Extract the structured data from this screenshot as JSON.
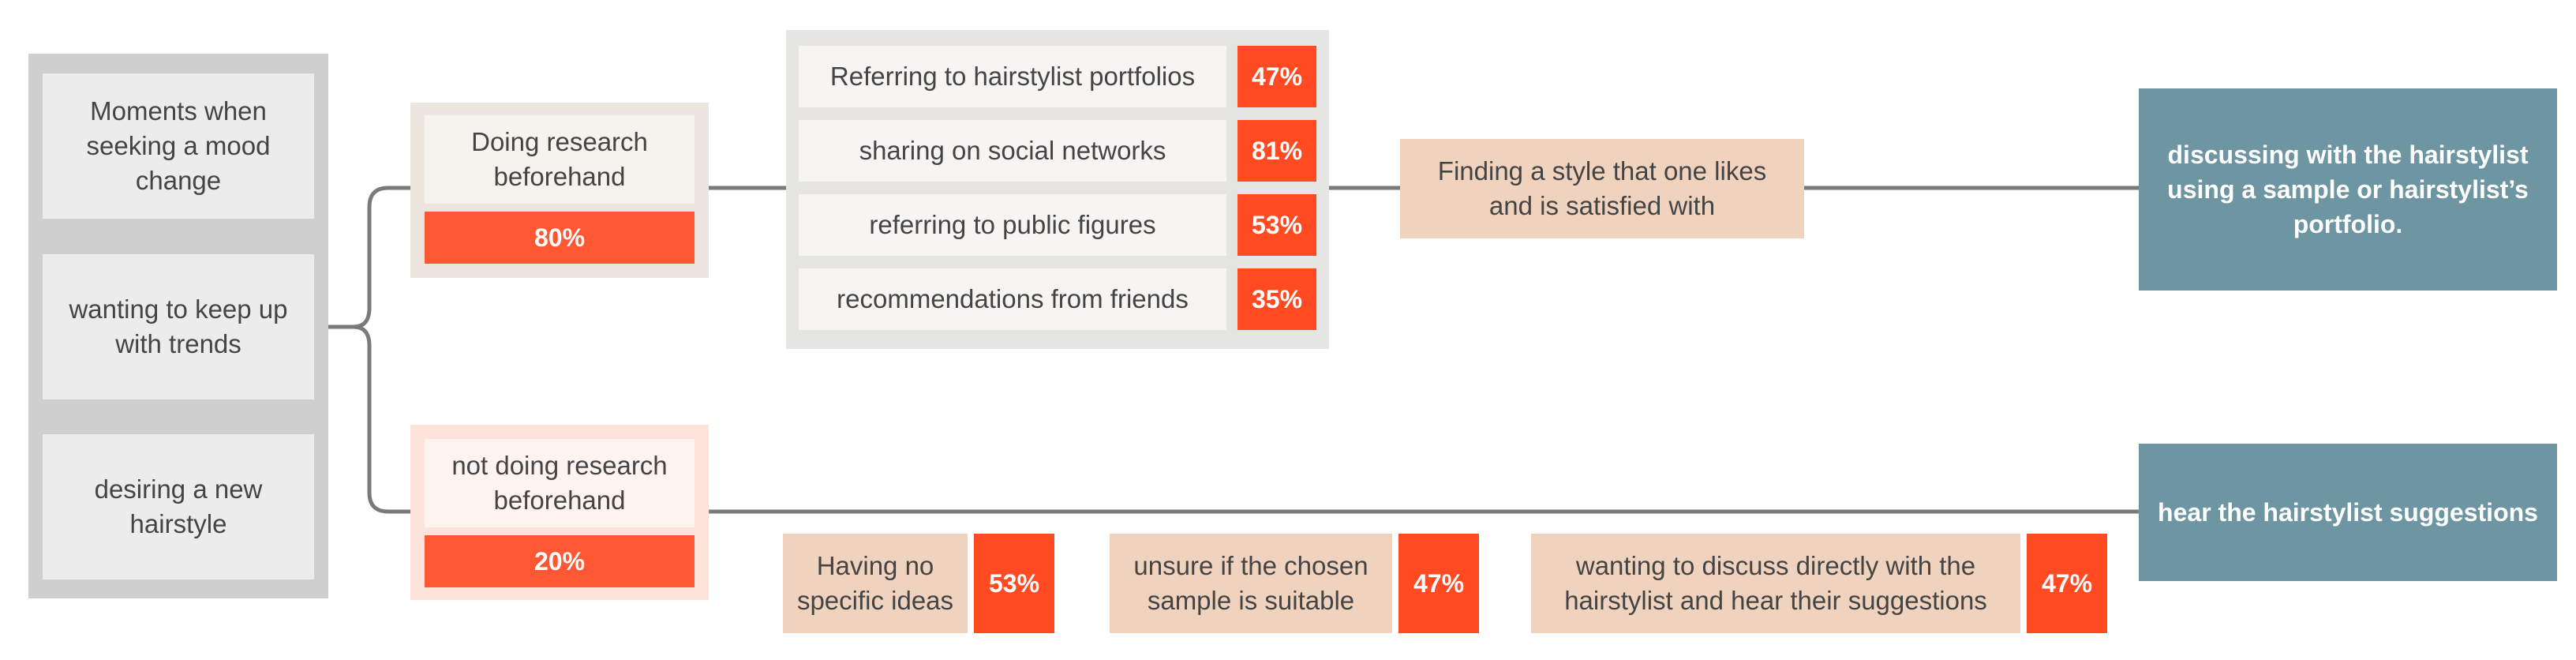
{
  "triggers": [
    {
      "label": "Moments when seeking a mood change"
    },
    {
      "label": "wanting to keep up with trends"
    },
    {
      "label": "desiring a new hairstyle"
    }
  ],
  "branches": {
    "research": {
      "label": "Doing research beforehand",
      "percent": "80%"
    },
    "no_research": {
      "label": "not doing research beforehand",
      "percent": "20%"
    }
  },
  "methods": [
    {
      "label": "Referring to hairstylist portfolios",
      "percent": "47%"
    },
    {
      "label": "sharing on social networks",
      "percent": "81%"
    },
    {
      "label": "referring to public figures",
      "percent": "53%"
    },
    {
      "label": "recommendations from friends",
      "percent": "35%"
    }
  ],
  "goal": {
    "label": "Finding a style that one likes and is satisfied with"
  },
  "outcomes": {
    "research": "discussing with the hairstylist using a sample or hairstylist’s portfolio.",
    "no_research": "hear the hairstylist suggestions"
  },
  "reasons": [
    {
      "label": "Having no specific ideas",
      "percent": "53%"
    },
    {
      "label": "unsure if the chosen sample is suitable",
      "percent": "47%"
    },
    {
      "label": "wanting to discuss directly with the hairstylist and hear their suggestions",
      "percent": "47%"
    }
  ],
  "colors": {
    "accent": "#ff4a22",
    "outcome": "#6e95a2",
    "goal": "#f0d3bf",
    "connector": "#7a7a7a"
  }
}
